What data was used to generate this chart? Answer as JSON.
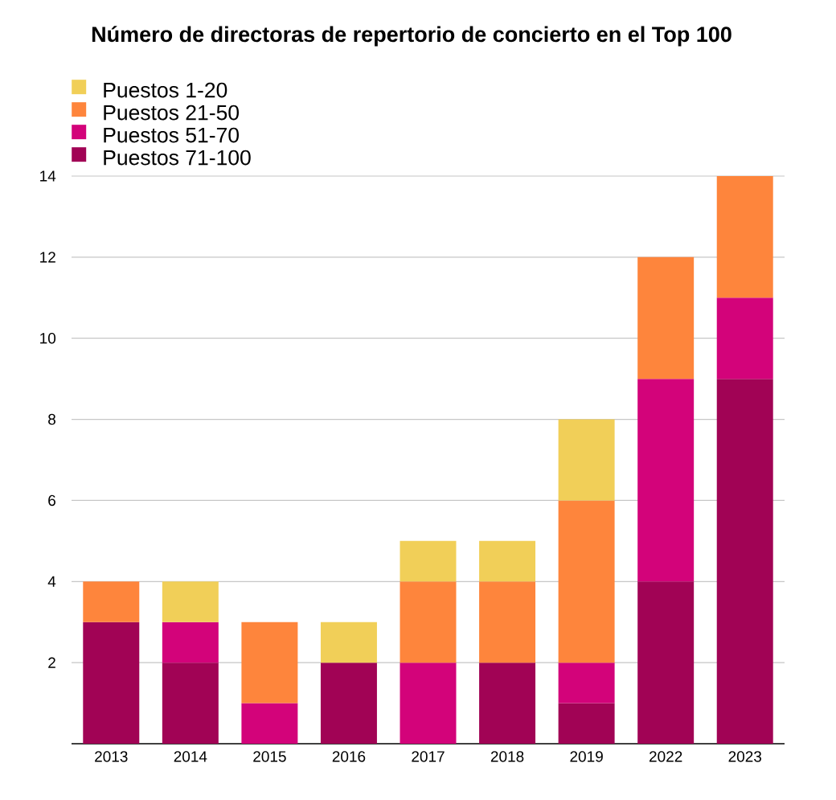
{
  "chart_data": {
    "type": "bar",
    "title": "Número de directoras de repertorio de concierto en el Top 100",
    "categories": [
      "2013",
      "2014",
      "2015",
      "2016",
      "2017",
      "2018",
      "2019",
      "2022",
      "2023"
    ],
    "series": [
      {
        "name": "Puestos 71-100",
        "color": "#a10355",
        "values": [
          3,
          2,
          0,
          2,
          0,
          2,
          1,
          4,
          9
        ]
      },
      {
        "name": "Puestos 51-70",
        "color": "#d3037a",
        "values": [
          0,
          1,
          1,
          0,
          2,
          0,
          1,
          5,
          2
        ]
      },
      {
        "name": "Puestos 21-50",
        "color": "#fe853c",
        "values": [
          1,
          0,
          2,
          0,
          2,
          2,
          4,
          3,
          3
        ]
      },
      {
        "name": "Puestos 1-20",
        "color": "#f1cf58",
        "values": [
          0,
          1,
          0,
          1,
          1,
          1,
          2,
          0,
          0
        ]
      }
    ],
    "stacked": true,
    "ylim": [
      0,
      14
    ],
    "yticks": [
      2,
      4,
      6,
      8,
      10,
      12,
      14
    ],
    "grid": "y",
    "legend": "top left"
  }
}
